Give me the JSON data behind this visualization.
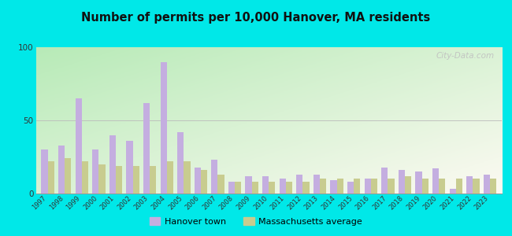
{
  "title": "Number of permits per 10,000 Hanover, MA residents",
  "years": [
    1997,
    1998,
    1999,
    2000,
    2001,
    2002,
    2003,
    2004,
    2005,
    2006,
    2007,
    2008,
    2009,
    2010,
    2011,
    2012,
    2013,
    2014,
    2015,
    2016,
    2017,
    2018,
    2019,
    2020,
    2021,
    2022,
    2023
  ],
  "hanover": [
    30,
    33,
    65,
    30,
    40,
    36,
    62,
    90,
    42,
    18,
    23,
    8,
    12,
    12,
    10,
    13,
    13,
    9,
    8,
    10,
    18,
    16,
    15,
    17,
    3,
    12,
    13
  ],
  "ma_avg": [
    22,
    24,
    22,
    20,
    19,
    19,
    19,
    22,
    22,
    16,
    13,
    8,
    8,
    8,
    8,
    8,
    10,
    10,
    10,
    10,
    10,
    12,
    10,
    10,
    10,
    10,
    10
  ],
  "hanover_color": "#c4aee0",
  "ma_avg_color": "#c8cc8f",
  "outer_bg": "#00e8e8",
  "ylim": [
    0,
    100
  ],
  "yticks": [
    0,
    50,
    100
  ],
  "legend_hanover": "Hanover town",
  "legend_ma": "Massachusetts average",
  "watermark": "City-Data.com",
  "bg_color_topleft": "#b8e8b8",
  "bg_color_bottomright": "#f0f5e0"
}
